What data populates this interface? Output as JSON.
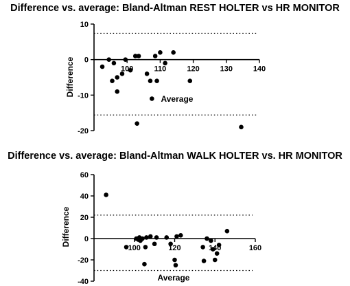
{
  "chart_data": [
    {
      "type": "scatter",
      "title": "Difference vs. average: Bland-Altman REST HOLTER vs HR MONITOR",
      "xlabel": "Average",
      "ylabel": "Difference",
      "xlim": [
        90,
        140
      ],
      "ylim": [
        -20,
        10
      ],
      "xticks": [
        100,
        110,
        120,
        130,
        140
      ],
      "yticks": [
        -20,
        -10,
        0,
        10
      ],
      "limits_of_agreement": [
        7.4,
        -15.6
      ],
      "zero_line": true,
      "grid": false,
      "points": [
        {
          "x": 92.5,
          "y": -2
        },
        {
          "x": 94.5,
          "y": 0
        },
        {
          "x": 95.5,
          "y": -6
        },
        {
          "x": 96.0,
          "y": -1
        },
        {
          "x": 97.0,
          "y": -9
        },
        {
          "x": 97.0,
          "y": -5
        },
        {
          "x": 98.5,
          "y": -4
        },
        {
          "x": 99.5,
          "y": 0
        },
        {
          "x": 101.0,
          "y": -3
        },
        {
          "x": 102.5,
          "y": 1
        },
        {
          "x": 103.5,
          "y": 1
        },
        {
          "x": 103.0,
          "y": -18
        },
        {
          "x": 106.0,
          "y": -4
        },
        {
          "x": 107.0,
          "y": -6
        },
        {
          "x": 107.5,
          "y": -11
        },
        {
          "x": 108.5,
          "y": 1
        },
        {
          "x": 109.0,
          "y": -6
        },
        {
          "x": 110.0,
          "y": 2
        },
        {
          "x": 111.5,
          "y": -1
        },
        {
          "x": 114.0,
          "y": 2
        },
        {
          "x": 119.0,
          "y": -6
        },
        {
          "x": 134.5,
          "y": -19
        }
      ]
    },
    {
      "type": "scatter",
      "title": "Difference vs. average: Bland-Altman WALK HOLTER vs. HR MONITOR",
      "xlabel": "Average",
      "ylabel": "Difference",
      "xlim": [
        80,
        160
      ],
      "ylim": [
        -40,
        60
      ],
      "xticks": [
        100,
        120,
        140,
        160
      ],
      "yticks": [
        -40,
        -20,
        0,
        20,
        40,
        60
      ],
      "limits_of_agreement": [
        22,
        -30
      ],
      "zero_line": true,
      "grid": false,
      "points": [
        {
          "x": 86,
          "y": 41
        },
        {
          "x": 96,
          "y": -8
        },
        {
          "x": 101,
          "y": 0
        },
        {
          "x": 102,
          "y": -1
        },
        {
          "x": 102.5,
          "y": 1
        },
        {
          "x": 103,
          "y": -2
        },
        {
          "x": 104,
          "y": 0
        },
        {
          "x": 105,
          "y": -24
        },
        {
          "x": 105.5,
          "y": -8
        },
        {
          "x": 106,
          "y": 1
        },
        {
          "x": 108,
          "y": 2
        },
        {
          "x": 110,
          "y": -5
        },
        {
          "x": 111,
          "y": 1
        },
        {
          "x": 116,
          "y": 1
        },
        {
          "x": 118,
          "y": -5
        },
        {
          "x": 120,
          "y": -20
        },
        {
          "x": 120.5,
          "y": -25
        },
        {
          "x": 121,
          "y": 2
        },
        {
          "x": 123,
          "y": 3
        },
        {
          "x": 134,
          "y": -8
        },
        {
          "x": 134.5,
          "y": -21
        },
        {
          "x": 136,
          "y": 0
        },
        {
          "x": 138,
          "y": -2
        },
        {
          "x": 139,
          "y": -10
        },
        {
          "x": 140,
          "y": -20
        },
        {
          "x": 141,
          "y": -14
        },
        {
          "x": 142,
          "y": -6
        },
        {
          "x": 146,
          "y": 7
        }
      ]
    }
  ]
}
